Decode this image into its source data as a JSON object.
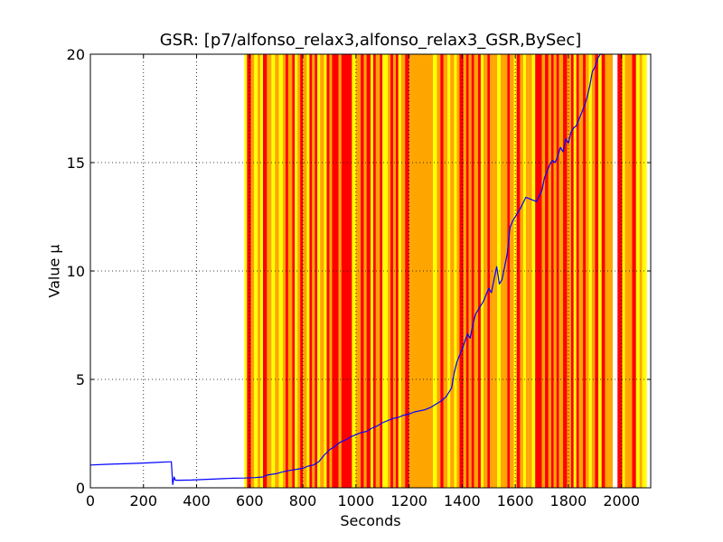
{
  "chart_data": {
    "type": "line",
    "title": "GSR: [p7/alfonso_relax3,alfonso_relax3_GSR,BySec]",
    "xlabel": "Seconds",
    "ylabel": "Value µ",
    "xlim": [
      0,
      2110
    ],
    "ylim": [
      0,
      20
    ],
    "xticks": [
      0,
      200,
      400,
      600,
      800,
      1000,
      1200,
      1400,
      1600,
      1800,
      2000
    ],
    "yticks": [
      0,
      5,
      10,
      15,
      20
    ],
    "grid": true,
    "colors": {
      "line": "#0000ff",
      "band_red": "#ff0000",
      "band_orange": "#ffa500",
      "band_yellow": "#ffff00"
    },
    "bands": [
      {
        "start": 580,
        "end": 590,
        "color": "yellow"
      },
      {
        "start": 590,
        "end": 605,
        "color": "red"
      },
      {
        "start": 605,
        "end": 617,
        "color": "orange"
      },
      {
        "start": 617,
        "end": 630,
        "color": "yellow"
      },
      {
        "start": 630,
        "end": 640,
        "color": "orange"
      },
      {
        "start": 640,
        "end": 650,
        "color": "yellow"
      },
      {
        "start": 650,
        "end": 665,
        "color": "red"
      },
      {
        "start": 665,
        "end": 682,
        "color": "orange"
      },
      {
        "start": 682,
        "end": 695,
        "color": "yellow"
      },
      {
        "start": 695,
        "end": 710,
        "color": "orange"
      },
      {
        "start": 710,
        "end": 725,
        "color": "yellow"
      },
      {
        "start": 725,
        "end": 735,
        "color": "orange"
      },
      {
        "start": 735,
        "end": 745,
        "color": "red"
      },
      {
        "start": 745,
        "end": 760,
        "color": "orange"
      },
      {
        "start": 760,
        "end": 770,
        "color": "red"
      },
      {
        "start": 770,
        "end": 780,
        "color": "yellow"
      },
      {
        "start": 780,
        "end": 790,
        "color": "orange"
      },
      {
        "start": 790,
        "end": 800,
        "color": "red"
      },
      {
        "start": 800,
        "end": 815,
        "color": "orange"
      },
      {
        "start": 815,
        "end": 825,
        "color": "yellow"
      },
      {
        "start": 825,
        "end": 835,
        "color": "red"
      },
      {
        "start": 835,
        "end": 845,
        "color": "orange"
      },
      {
        "start": 845,
        "end": 855,
        "color": "red"
      },
      {
        "start": 855,
        "end": 865,
        "color": "yellow"
      },
      {
        "start": 865,
        "end": 880,
        "color": "orange"
      },
      {
        "start": 880,
        "end": 890,
        "color": "yellow"
      },
      {
        "start": 890,
        "end": 900,
        "color": "red"
      },
      {
        "start": 900,
        "end": 910,
        "color": "orange"
      },
      {
        "start": 910,
        "end": 935,
        "color": "red"
      },
      {
        "start": 935,
        "end": 945,
        "color": "orange"
      },
      {
        "start": 945,
        "end": 985,
        "color": "red"
      },
      {
        "start": 985,
        "end": 1000,
        "color": "yellow"
      },
      {
        "start": 1000,
        "end": 1018,
        "color": "orange"
      },
      {
        "start": 1018,
        "end": 1030,
        "color": "red"
      },
      {
        "start": 1030,
        "end": 1040,
        "color": "orange"
      },
      {
        "start": 1040,
        "end": 1055,
        "color": "red"
      },
      {
        "start": 1055,
        "end": 1065,
        "color": "yellow"
      },
      {
        "start": 1065,
        "end": 1075,
        "color": "red"
      },
      {
        "start": 1075,
        "end": 1090,
        "color": "orange"
      },
      {
        "start": 1090,
        "end": 1100,
        "color": "red"
      },
      {
        "start": 1100,
        "end": 1120,
        "color": "yellow"
      },
      {
        "start": 1120,
        "end": 1130,
        "color": "orange"
      },
      {
        "start": 1130,
        "end": 1140,
        "color": "red"
      },
      {
        "start": 1140,
        "end": 1150,
        "color": "orange"
      },
      {
        "start": 1150,
        "end": 1160,
        "color": "red"
      },
      {
        "start": 1160,
        "end": 1170,
        "color": "yellow"
      },
      {
        "start": 1170,
        "end": 1185,
        "color": "orange"
      },
      {
        "start": 1185,
        "end": 1200,
        "color": "red"
      },
      {
        "start": 1200,
        "end": 1210,
        "color": "orange"
      },
      {
        "start": 1210,
        "end": 1290,
        "color": "orange"
      },
      {
        "start": 1290,
        "end": 1305,
        "color": "yellow"
      },
      {
        "start": 1305,
        "end": 1318,
        "color": "orange"
      },
      {
        "start": 1318,
        "end": 1330,
        "color": "red"
      },
      {
        "start": 1330,
        "end": 1345,
        "color": "orange"
      },
      {
        "start": 1345,
        "end": 1355,
        "color": "yellow"
      },
      {
        "start": 1355,
        "end": 1370,
        "color": "orange"
      },
      {
        "start": 1370,
        "end": 1380,
        "color": "yellow"
      },
      {
        "start": 1380,
        "end": 1390,
        "color": "orange"
      },
      {
        "start": 1390,
        "end": 1405,
        "color": "red"
      },
      {
        "start": 1405,
        "end": 1415,
        "color": "orange"
      },
      {
        "start": 1415,
        "end": 1425,
        "color": "red"
      },
      {
        "start": 1425,
        "end": 1435,
        "color": "orange"
      },
      {
        "start": 1435,
        "end": 1445,
        "color": "red"
      },
      {
        "start": 1445,
        "end": 1460,
        "color": "orange"
      },
      {
        "start": 1460,
        "end": 1470,
        "color": "red"
      },
      {
        "start": 1470,
        "end": 1480,
        "color": "yellow"
      },
      {
        "start": 1480,
        "end": 1495,
        "color": "orange"
      },
      {
        "start": 1495,
        "end": 1505,
        "color": "red"
      },
      {
        "start": 1505,
        "end": 1520,
        "color": "orange"
      },
      {
        "start": 1520,
        "end": 1532,
        "color": "orange"
      },
      {
        "start": 1532,
        "end": 1545,
        "color": "yellow"
      },
      {
        "start": 1545,
        "end": 1555,
        "color": "orange"
      },
      {
        "start": 1555,
        "end": 1570,
        "color": "orange"
      },
      {
        "start": 1570,
        "end": 1580,
        "color": "red"
      },
      {
        "start": 1580,
        "end": 1595,
        "color": "orange"
      },
      {
        "start": 1595,
        "end": 1605,
        "color": "yellow"
      },
      {
        "start": 1605,
        "end": 1618,
        "color": "red"
      },
      {
        "start": 1618,
        "end": 1630,
        "color": "orange"
      },
      {
        "start": 1630,
        "end": 1640,
        "color": "yellow"
      },
      {
        "start": 1640,
        "end": 1650,
        "color": "orange"
      },
      {
        "start": 1650,
        "end": 1663,
        "color": "orange"
      },
      {
        "start": 1663,
        "end": 1675,
        "color": "yellow"
      },
      {
        "start": 1675,
        "end": 1700,
        "color": "red"
      },
      {
        "start": 1700,
        "end": 1712,
        "color": "orange"
      },
      {
        "start": 1712,
        "end": 1725,
        "color": "red"
      },
      {
        "start": 1725,
        "end": 1735,
        "color": "orange"
      },
      {
        "start": 1735,
        "end": 1745,
        "color": "red"
      },
      {
        "start": 1745,
        "end": 1755,
        "color": "orange"
      },
      {
        "start": 1755,
        "end": 1765,
        "color": "red"
      },
      {
        "start": 1765,
        "end": 1780,
        "color": "orange"
      },
      {
        "start": 1780,
        "end": 1795,
        "color": "red"
      },
      {
        "start": 1795,
        "end": 1810,
        "color": "orange"
      },
      {
        "start": 1810,
        "end": 1820,
        "color": "red"
      },
      {
        "start": 1820,
        "end": 1830,
        "color": "yellow"
      },
      {
        "start": 1830,
        "end": 1840,
        "color": "red"
      },
      {
        "start": 1840,
        "end": 1855,
        "color": "orange"
      },
      {
        "start": 1855,
        "end": 1865,
        "color": "red"
      },
      {
        "start": 1865,
        "end": 1877,
        "color": "orange"
      },
      {
        "start": 1877,
        "end": 1888,
        "color": "yellow"
      },
      {
        "start": 1888,
        "end": 1900,
        "color": "orange"
      },
      {
        "start": 1900,
        "end": 1913,
        "color": "red"
      },
      {
        "start": 1913,
        "end": 1925,
        "color": "yellow"
      },
      {
        "start": 1925,
        "end": 1938,
        "color": "red"
      },
      {
        "start": 1938,
        "end": 1952,
        "color": "orange"
      },
      {
        "start": 1952,
        "end": 1967,
        "color": "orange"
      },
      {
        "start": 1985,
        "end": 2003,
        "color": "red"
      },
      {
        "start": 2003,
        "end": 2013,
        "color": "yellow"
      },
      {
        "start": 2013,
        "end": 2023,
        "color": "orange"
      },
      {
        "start": 2023,
        "end": 2040,
        "color": "orange"
      },
      {
        "start": 2040,
        "end": 2055,
        "color": "red"
      },
      {
        "start": 2055,
        "end": 2068,
        "color": "yellow"
      },
      {
        "start": 2068,
        "end": 2078,
        "color": "orange"
      },
      {
        "start": 2078,
        "end": 2095,
        "color": "yellow"
      }
    ],
    "series": [
      {
        "x": [
          0,
          50,
          100,
          150,
          200,
          250,
          300,
          305,
          310,
          315,
          320,
          340,
          380,
          420,
          460,
          500,
          540,
          580,
          620,
          650,
          670,
          700,
          720,
          740,
          760,
          780,
          800,
          820,
          840,
          860,
          880,
          900,
          920,
          940,
          960,
          980,
          1000,
          1020,
          1040,
          1060,
          1080,
          1100,
          1120,
          1140,
          1160,
          1180,
          1200,
          1220,
          1240,
          1260,
          1280,
          1300,
          1320,
          1340,
          1360,
          1370,
          1380,
          1400,
          1420,
          1430,
          1440,
          1450,
          1460,
          1480,
          1500,
          1510,
          1520,
          1530,
          1540,
          1550,
          1560,
          1570,
          1580,
          1590,
          1600,
          1620,
          1640,
          1660,
          1680,
          1700,
          1710,
          1720,
          1730,
          1740,
          1750,
          1760,
          1770,
          1780,
          1790,
          1800,
          1810,
          1820,
          1830,
          1840,
          1850,
          1860,
          1870,
          1880,
          1890,
          1900,
          1910,
          1920,
          1930
        ],
        "y": [
          1.05,
          1.08,
          1.1,
          1.12,
          1.14,
          1.17,
          1.2,
          1.2,
          0.15,
          0.5,
          0.35,
          0.35,
          0.36,
          0.38,
          0.4,
          0.42,
          0.44,
          0.45,
          0.47,
          0.5,
          0.6,
          0.65,
          0.72,
          0.78,
          0.82,
          0.86,
          0.9,
          1.0,
          1.05,
          1.2,
          1.5,
          1.75,
          1.9,
          2.1,
          2.2,
          2.35,
          2.45,
          2.55,
          2.6,
          2.75,
          2.85,
          3.0,
          3.1,
          3.2,
          3.25,
          3.35,
          3.4,
          3.5,
          3.55,
          3.6,
          3.7,
          3.85,
          4.0,
          4.2,
          4.6,
          5.3,
          5.8,
          6.4,
          7.1,
          6.9,
          7.5,
          8.0,
          8.2,
          8.6,
          9.2,
          9.0,
          9.6,
          10.2,
          9.4,
          9.6,
          10.2,
          10.8,
          12.0,
          12.3,
          12.5,
          12.9,
          13.4,
          13.3,
          13.2,
          13.7,
          14.3,
          14.6,
          14.9,
          15.1,
          15.0,
          15.3,
          15.7,
          15.5,
          16.1,
          15.9,
          16.4,
          16.6,
          16.7,
          17.0,
          17.3,
          17.6,
          18.0,
          18.5,
          19.2,
          19.4,
          19.8,
          20.0,
          20.0
        ]
      }
    ]
  }
}
